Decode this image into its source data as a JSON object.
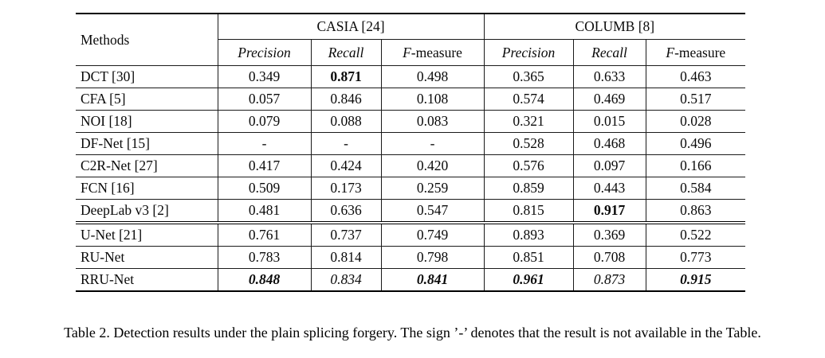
{
  "table": {
    "methods_header": "Methods",
    "col_groups": [
      {
        "label": "CASIA [24]"
      },
      {
        "label": "COLUMB [8]"
      }
    ],
    "sub_headers": [
      "Precision",
      "Recall",
      "F-measure"
    ],
    "rows": [
      {
        "method": "DCT [30]",
        "values": [
          "0.349",
          "0.871",
          "0.498",
          "0.365",
          "0.633",
          "0.463"
        ],
        "styles": [
          "",
          "b",
          "",
          "",
          "",
          ""
        ]
      },
      {
        "method": "CFA [5]",
        "values": [
          "0.057",
          "0.846",
          "0.108",
          "0.574",
          "0.469",
          "0.517"
        ],
        "styles": [
          "",
          "",
          "",
          "",
          "",
          ""
        ]
      },
      {
        "method": "NOI [18]",
        "values": [
          "0.079",
          "0.088",
          "0.083",
          "0.321",
          "0.015",
          "0.028"
        ],
        "styles": [
          "",
          "",
          "",
          "",
          "",
          ""
        ]
      },
      {
        "method": "DF-Net [15]",
        "values": [
          "-",
          "-",
          "-",
          "0.528",
          "0.468",
          "0.496"
        ],
        "styles": [
          "",
          "",
          "",
          "",
          "",
          ""
        ]
      },
      {
        "method": "C2R-Net [27]",
        "values": [
          "0.417",
          "0.424",
          "0.420",
          "0.576",
          "0.097",
          "0.166"
        ],
        "styles": [
          "",
          "",
          "",
          "",
          "",
          ""
        ]
      },
      {
        "method": "FCN [16]",
        "values": [
          "0.509",
          "0.173",
          "0.259",
          "0.859",
          "0.443",
          "0.584"
        ],
        "styles": [
          "",
          "",
          "",
          "",
          "",
          ""
        ]
      },
      {
        "method": "DeepLab v3 [2]",
        "values": [
          "0.481",
          "0.636",
          "0.547",
          "0.815",
          "0.917",
          "0.863"
        ],
        "styles": [
          "",
          "",
          "",
          "",
          "b",
          ""
        ]
      },
      {
        "method": "U-Net [21]",
        "values": [
          "0.761",
          "0.737",
          "0.749",
          "0.893",
          "0.369",
          "0.522"
        ],
        "styles": [
          "",
          "",
          "",
          "",
          "",
          ""
        ],
        "group_start": true
      },
      {
        "method": "RU-Net",
        "values": [
          "0.783",
          "0.814",
          "0.798",
          "0.851",
          "0.708",
          "0.773"
        ],
        "styles": [
          "",
          "",
          "",
          "",
          "",
          ""
        ]
      },
      {
        "method": "RRU-Net",
        "values": [
          "0.848",
          "0.834",
          "0.841",
          "0.961",
          "0.873",
          "0.915"
        ],
        "styles": [
          "bi",
          "i",
          "bi",
          "bi",
          "i",
          "bi"
        ]
      }
    ]
  },
  "caption": "Table 2. Detection results under the plain splicing forgery. The sign ’-’ denotes that the result is not available in the Table."
}
